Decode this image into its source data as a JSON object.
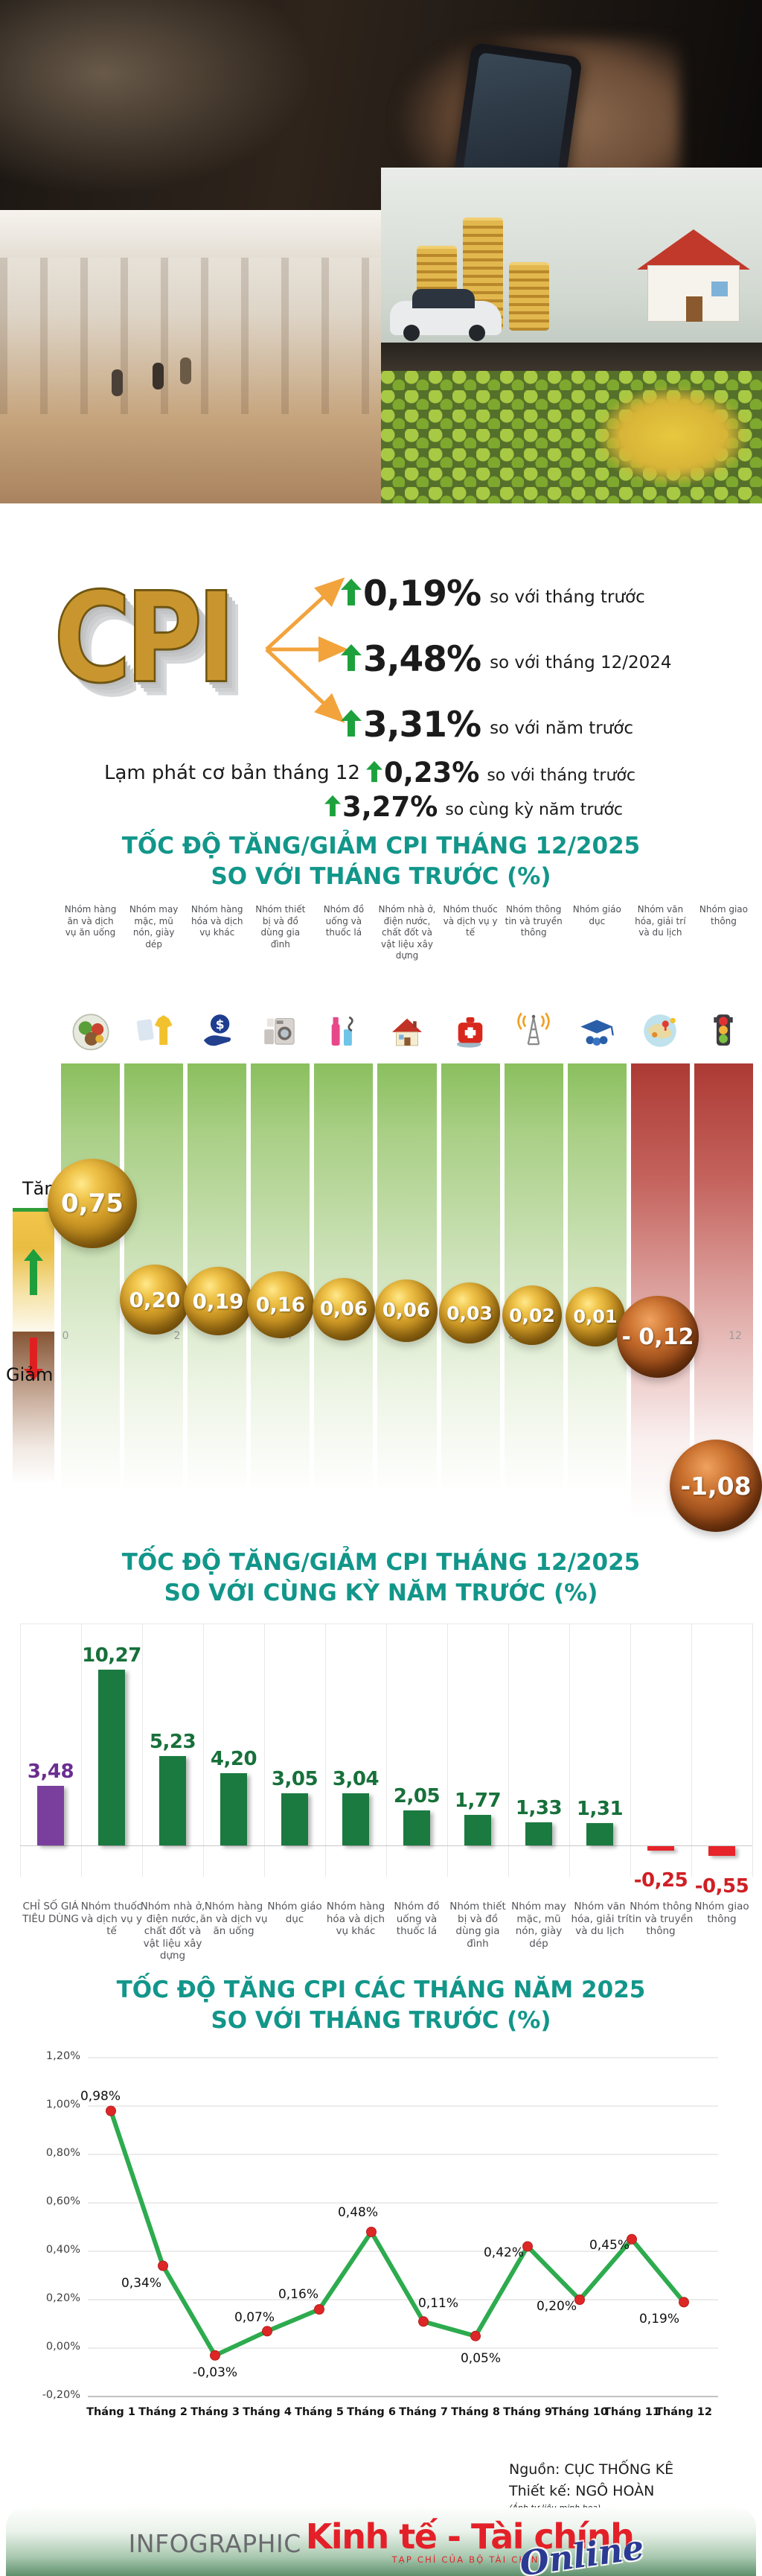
{
  "header": {
    "logo": "CPI",
    "stats": [
      {
        "value": "0,19%",
        "label": "so với tháng trước"
      },
      {
        "value": "3,48%",
        "label": "so với tháng 12/2024"
      },
      {
        "value": "3,31%",
        "label": "so với năm trước"
      }
    ],
    "core_inflation_label": "Lạm phát cơ bản tháng 12",
    "core_stats": [
      {
        "value": "0,23%",
        "label": "so với tháng trước"
      },
      {
        "value": "3,27%",
        "label": "so cùng kỳ năm trước"
      }
    ]
  },
  "chart1": {
    "title_line1": "TỐC ĐỘ TĂNG/GIẢM CPI THÁNG 12/2025",
    "title_line2": "SO VỚI THÁNG TRƯỚC (%)",
    "legend_up": "Tăng",
    "legend_down": "Giảm",
    "axis_ticks": [
      "0",
      "2",
      "4",
      "6",
      "8",
      "10",
      "12"
    ]
  },
  "chart2": {
    "title_line1": "TỐC ĐỘ TĂNG/GIẢM CPI THÁNG 12/2025",
    "title_line2": "SO VỚI CÙNG KỲ NĂM TRƯỚC (%)"
  },
  "chart3": {
    "title_line1": "TỐC ĐỘ TĂNG CPI CÁC THÁNG NĂM 2025",
    "title_line2": "SO VỚI THÁNG TRƯỚC (%)"
  },
  "credits": {
    "source": "Nguồn: CỤC THỐNG KÊ",
    "design": "Thiết kế: NGÔ HOÀN",
    "note": "(Ảnh tư liệu minh họa)"
  },
  "footer": {
    "infographic": "INFOGRAPHIC",
    "brand": "Kinh tế - Tài chính",
    "brand_sub": "TẠP CHÍ CỦA BỘ TÀI CHÍNH",
    "brand_online": "Online"
  },
  "colors": {
    "title_teal": "#12968a",
    "up_green": "#1da13c",
    "bar_green": "#1b7a40",
    "bar_purple": "#7a3f9d",
    "bar_red": "#e6242a",
    "line_green": "#2dab4e",
    "marker_red": "#dd2726",
    "brand_red": "#e32028",
    "brand_blue": "#2b3a92"
  },
  "chart_data": [
    {
      "type": "bar",
      "subtype": "bubble-on-gradient-columns",
      "title": "TỐC ĐỘ TĂNG/GIẢM CPI THÁNG 12/2025 SO VỚI THÁNG TRƯỚC (%)",
      "categories": [
        "Nhóm hàng ăn và dịch vụ ăn uống",
        "Nhóm may mặc, mũ nón, giày dép",
        "Nhóm hàng hóa và dịch vụ khác",
        "Nhóm thiết bị và đồ dùng gia đình",
        "Nhóm đồ uống và thuốc lá",
        "Nhóm nhà ở, điện nước, chất đốt và vật liệu xây dựng",
        "Nhóm thuốc và dịch vụ y tế",
        "Nhóm thông tin và truyền thông",
        "Nhóm giáo dục",
        "Nhóm văn hóa, giải trí và du lịch",
        "Nhóm giao thông"
      ],
      "values": [
        0.75,
        0.2,
        0.19,
        0.16,
        0.06,
        0.06,
        0.03,
        0.02,
        0.01,
        -0.12,
        -1.08
      ],
      "value_labels": [
        "0,75",
        "0,20",
        "0,19",
        "0,16",
        "0,06",
        "0,06",
        "0,03",
        "0,02",
        "0,01",
        "- 0,12",
        "-1,08"
      ],
      "icons": [
        "food",
        "clothing",
        "money",
        "appliances",
        "beverage",
        "house",
        "medical",
        "telecom",
        "education",
        "travel",
        "traffic"
      ],
      "legend": {
        "up": "Tăng",
        "down": "Giảm"
      },
      "xlabel": "",
      "ylabel": "",
      "grid": "faint horizontal ticks 0-12"
    },
    {
      "type": "bar",
      "title": "TỐC ĐỘ TĂNG/GIẢM CPI THÁNG 12/2025 SO VỚI CÙNG KỲ NĂM TRƯỚC (%)",
      "categories": [
        "CHỈ SỐ GIÁ TIÊU DÙNG",
        "Nhóm thuốc và dịch vụ y tế",
        "Nhóm nhà ở, điện nước, chất đốt và vật liệu xây dựng",
        "Nhóm hàng ăn và dịch vụ ăn uống",
        "Nhóm giáo dục",
        "Nhóm hàng hóa và dịch vụ khác",
        "Nhóm đồ uống và thuốc lá",
        "Nhóm thiết bị và đồ dùng gia đình",
        "Nhóm may mặc, mũ nón, giày dép",
        "Nhóm văn hóa, giải trí và du lịch",
        "Nhóm thông tin và truyền thông",
        "Nhóm giao thông"
      ],
      "values": [
        3.48,
        10.27,
        5.23,
        4.2,
        3.05,
        3.04,
        2.05,
        1.77,
        1.33,
        1.31,
        -0.25,
        -0.55
      ],
      "value_labels": [
        "3,48",
        "10,27",
        "5,23",
        "4,20",
        "3,05",
        "3,04",
        "2,05",
        "1,77",
        "1,33",
        "1,31",
        "-0,25",
        "-0,55"
      ],
      "bar_colors": [
        "purple",
        "green",
        "green",
        "green",
        "green",
        "green",
        "green",
        "green",
        "green",
        "green",
        "red",
        "red"
      ],
      "ylim": [
        -1,
        11
      ],
      "grid": "vertical separators, zero baseline"
    },
    {
      "type": "line",
      "title": "TỐC ĐỘ TĂNG CPI CÁC THÁNG NĂM 2025 SO VỚI THÁNG TRƯỚC (%)",
      "x": [
        "Tháng 1",
        "Tháng 2",
        "Tháng 3",
        "Tháng 4",
        "Tháng 5",
        "Tháng 6",
        "Tháng 7",
        "Tháng 8",
        "Tháng 9",
        "Tháng 10",
        "Tháng 11",
        "Tháng 12"
      ],
      "values": [
        0.98,
        0.34,
        -0.03,
        0.07,
        0.16,
        0.48,
        0.11,
        0.05,
        0.42,
        0.2,
        0.45,
        0.19
      ],
      "value_labels": [
        "0,98%",
        "0,34%",
        "-0,03%",
        "0,07%",
        "0,16%",
        "0,48%",
        "0,11%",
        "0,05%",
        "0,42%",
        "0,20%",
        "0,45%",
        "0,19%"
      ],
      "ylabels": [
        "1,20%",
        "1,00%",
        "0,80%",
        "0,60%",
        "0,40%",
        "0,20%",
        "0,00%",
        "-0,20%"
      ],
      "ylim": [
        -0.2,
        1.2
      ],
      "grid": "horizontal gridlines",
      "legend": "none",
      "marker": "red dot",
      "line_color": "green"
    }
  ]
}
